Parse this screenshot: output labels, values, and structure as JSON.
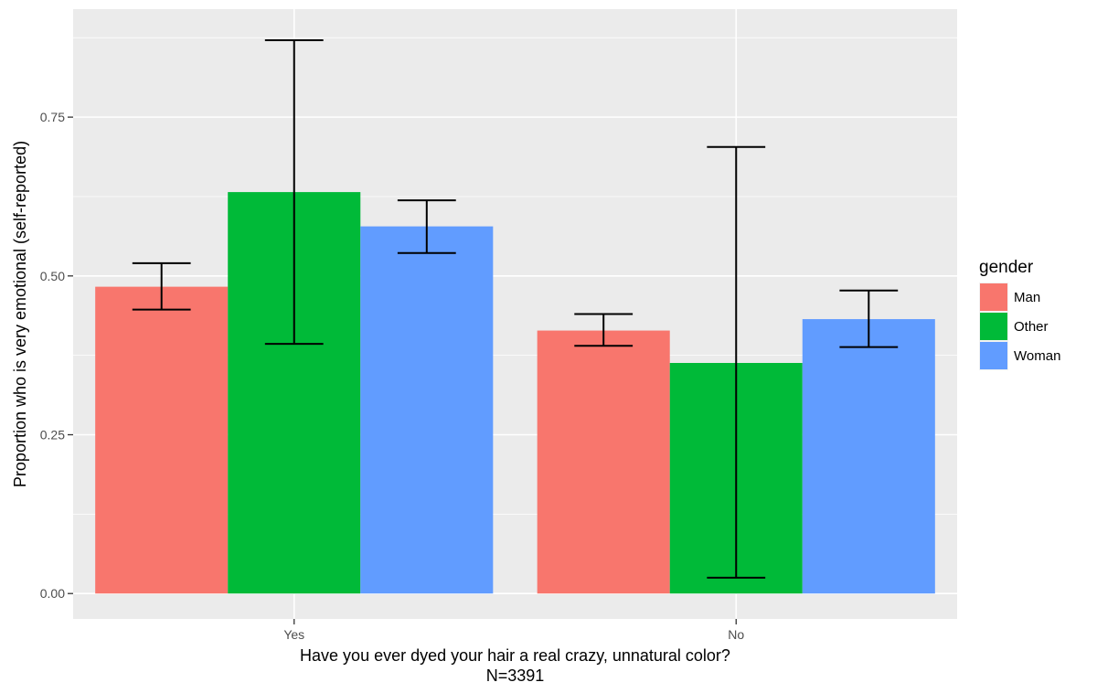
{
  "chart_data": {
    "type": "bar",
    "categories": [
      "Yes",
      "No"
    ],
    "series": [
      {
        "name": "Man",
        "color": "#F8766D",
        "values": [
          0.483,
          0.414
        ],
        "ci_low": [
          0.447,
          0.39
        ],
        "ci_high": [
          0.52,
          0.44
        ]
      },
      {
        "name": "Other",
        "color": "#00BA38",
        "values": [
          0.632,
          0.363
        ],
        "ci_low": [
          0.393,
          0.025
        ],
        "ci_high": [
          0.871,
          0.703
        ]
      },
      {
        "name": "Woman",
        "color": "#619CFF",
        "values": [
          0.578,
          0.432
        ],
        "ci_low": [
          0.536,
          0.388
        ],
        "ci_high": [
          0.619,
          0.477
        ]
      }
    ],
    "ylim": [
      -0.04,
      0.92
    ],
    "yticks": [
      0.0,
      0.25,
      0.5,
      0.75
    ],
    "ytick_labels": [
      "0.00",
      "0.25",
      "0.50",
      "0.75"
    ],
    "xlabel": "Have you ever dyed your hair a real crazy, unnatural color?",
    "xlabel_line2": "N=3391",
    "ylabel": "Proportion who is very emotional (self-reported)",
    "legend_title": "gender",
    "legend_position": "right",
    "grid": true,
    "panel_color": "#EBEBEB"
  }
}
